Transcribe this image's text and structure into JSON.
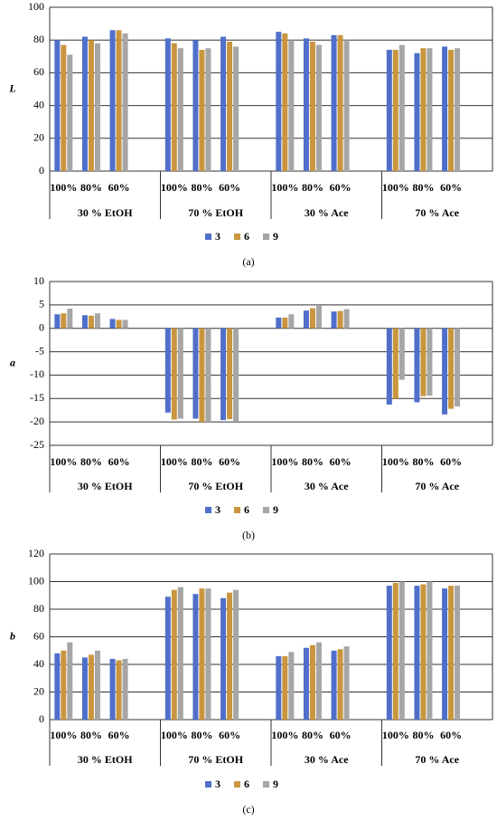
{
  "chart_data": [
    {
      "type": "bar",
      "y_label": "L",
      "caption": "(a)",
      "categories": [
        "100%",
        "80%",
        "60%",
        null,
        "100%",
        "80%",
        "60%",
        null,
        "100%",
        "80%",
        "60%",
        null,
        "100%",
        "80%",
        "60%",
        null
      ],
      "group_labels": [
        "30 % EtOH",
        "70 % EtOH",
        "30 % Ace",
        "70 % Ace"
      ],
      "series": [
        {
          "name": "3",
          "color": "#4f6fc9",
          "values": [
            80,
            82,
            86,
            null,
            81,
            80,
            82,
            null,
            85,
            81,
            83,
            null,
            74,
            72,
            76,
            null
          ]
        },
        {
          "name": "6",
          "color": "#c9963f",
          "values": [
            77,
            80,
            86,
            null,
            78,
            74,
            79,
            null,
            84,
            79,
            83,
            null,
            74,
            75,
            74,
            null
          ]
        },
        {
          "name": "9",
          "color": "#a6a6a6",
          "values": [
            71,
            78,
            84,
            null,
            75,
            75,
            76,
            null,
            80,
            77,
            80,
            null,
            77,
            75,
            75,
            null
          ]
        }
      ],
      "ylim": [
        0,
        100
      ],
      "yticks": [
        0,
        20,
        40,
        60,
        80,
        100
      ],
      "grid": true
    },
    {
      "type": "bar",
      "y_label": "a",
      "caption": "(b)",
      "categories": [
        "100%",
        "80%",
        "60%",
        null,
        "100%",
        "80%",
        "60%",
        null,
        "100%",
        "80%",
        "60%",
        null,
        "100%",
        "80%",
        "60%",
        null
      ],
      "group_labels": [
        "30 % EtOH",
        "70 % EtOH",
        "30 % Ace",
        "70 % Ace"
      ],
      "series": [
        {
          "name": "3",
          "color": "#4f6fc9",
          "values": [
            3,
            2.8,
            2,
            null,
            -18,
            -19.3,
            -19.6,
            null,
            2.3,
            3.8,
            3.6,
            null,
            -16.3,
            -15.8,
            -18.4,
            null
          ]
        },
        {
          "name": "6",
          "color": "#c9963f",
          "values": [
            3.2,
            2.7,
            1.8,
            null,
            -19.5,
            -20,
            -19.4,
            null,
            2.3,
            4.3,
            3.7,
            null,
            -15,
            -14.5,
            -17.2,
            null
          ]
        },
        {
          "name": "9",
          "color": "#a6a6a6",
          "values": [
            4.2,
            3.2,
            1.8,
            null,
            -19.3,
            -20,
            -19.8,
            null,
            3,
            4.8,
            4.1,
            null,
            -11,
            -14.4,
            -16.7,
            null
          ]
        }
      ],
      "ylim": [
        -25,
        10
      ],
      "yticks": [
        -25,
        -20,
        -15,
        -10,
        -5,
        0,
        5,
        10
      ],
      "grid": true
    },
    {
      "type": "bar",
      "y_label": "b",
      "caption": "(c)",
      "categories": [
        "100%",
        "80%",
        "60%",
        null,
        "100%",
        "80%",
        "60%",
        null,
        "100%",
        "80%",
        "60%",
        null,
        "100%",
        "80%",
        "60%",
        null
      ],
      "group_labels": [
        "30 % EtOH",
        "70 % EtOH",
        "30 % Ace",
        "70 % Ace"
      ],
      "series": [
        {
          "name": "3",
          "color": "#4f6fc9",
          "values": [
            48,
            45,
            44,
            null,
            89,
            91,
            88,
            null,
            46,
            52,
            50,
            null,
            97,
            97,
            95,
            null
          ]
        },
        {
          "name": "6",
          "color": "#c9963f",
          "values": [
            50,
            47,
            43,
            null,
            94,
            95,
            92,
            null,
            46,
            54,
            51,
            null,
            99,
            98,
            97,
            null
          ]
        },
        {
          "name": "9",
          "color": "#a6a6a6",
          "values": [
            56,
            50,
            44,
            null,
            96,
            95,
            94,
            null,
            49,
            56,
            53,
            null,
            100,
            100,
            97,
            null
          ]
        }
      ],
      "ylim": [
        0,
        120
      ],
      "yticks": [
        0,
        20,
        40,
        60,
        80,
        100,
        120
      ],
      "grid": true
    }
  ]
}
